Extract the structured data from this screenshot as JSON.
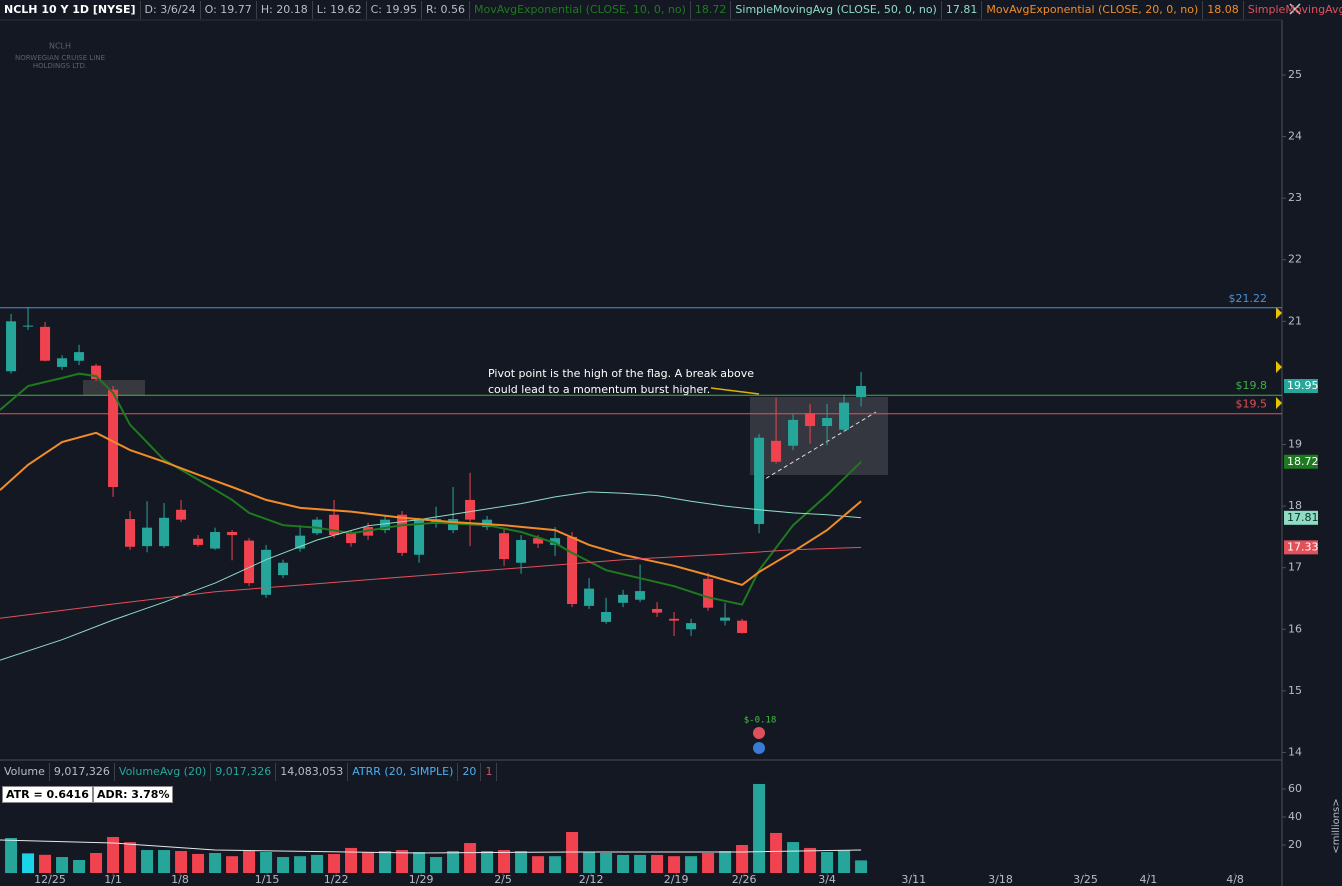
{
  "chart_data": [
    {
      "type": "candlestick",
      "title": "NCLH 10 Y 1D [NYSE]",
      "header": [
        "D: 3/6/24",
        "O: 19.77",
        "H: 20.18",
        "L: 19.62",
        "C: 19.95",
        "R: 0.56"
      ],
      "watermark": [
        "NCLH",
        "NORWEGIAN CRUISE LINE",
        "HOLDINGS LTD."
      ],
      "up_color": "#26a69a",
      "down_color": "#f0434f",
      "open": [
        20.19,
        20.93,
        20.91,
        20.26,
        20.36,
        20.28,
        19.89,
        17.79,
        17.35,
        17.35,
        17.94,
        17.47,
        17.31,
        17.58,
        17.44,
        16.56,
        16.88,
        17.31,
        17.56,
        17.86,
        17.56,
        17.66,
        17.61,
        17.86,
        17.21,
        17.71,
        17.61,
        18.1,
        17.66,
        17.56,
        17.08,
        17.48,
        17.37,
        17.5,
        16.38,
        16.12,
        16.43,
        16.48,
        16.33,
        16.17,
        16.0,
        16.82,
        16.14,
        16.14,
        17.71,
        19.06,
        18.98,
        19.51,
        19.3,
        19.24,
        19.77
      ],
      "high": [
        21.12,
        21.23,
        20.99,
        20.45,
        20.62,
        20.31,
        19.95,
        17.92,
        18.08,
        18.05,
        18.1,
        17.53,
        17.65,
        17.61,
        17.48,
        17.37,
        17.13,
        17.69,
        17.82,
        18.1,
        17.61,
        17.73,
        17.84,
        17.92,
        17.81,
        17.99,
        18.31,
        18.54,
        17.84,
        17.63,
        17.53,
        17.53,
        17.66,
        17.58,
        16.83,
        16.51,
        16.64,
        17.05,
        16.44,
        16.28,
        16.17,
        16.92,
        16.43,
        16.17,
        19.17,
        19.76,
        19.5,
        19.66,
        19.66,
        19.81,
        20.18
      ],
      "low": [
        20.15,
        20.86,
        20.35,
        20.21,
        20.29,
        20.03,
        18.15,
        17.29,
        17.25,
        17.32,
        17.74,
        17.34,
        17.29,
        17.12,
        16.7,
        16.51,
        16.83,
        17.26,
        17.53,
        17.48,
        17.34,
        17.45,
        17.56,
        17.19,
        17.08,
        17.65,
        17.56,
        17.35,
        17.61,
        17.03,
        16.9,
        17.32,
        17.19,
        16.36,
        16.33,
        16.09,
        16.36,
        16.44,
        16.2,
        15.89,
        15.89,
        16.3,
        16.06,
        15.93,
        17.56,
        18.69,
        18.91,
        19.01,
        18.99,
        19.2,
        19.62
      ],
      "close": [
        21.0,
        20.93,
        20.36,
        20.4,
        20.5,
        20.06,
        18.31,
        17.34,
        17.65,
        17.81,
        17.78,
        17.37,
        17.58,
        17.53,
        16.75,
        17.29,
        17.08,
        17.52,
        17.78,
        17.53,
        17.4,
        17.52,
        17.78,
        17.24,
        17.78,
        17.79,
        17.79,
        17.78,
        17.78,
        17.14,
        17.45,
        17.39,
        17.48,
        16.41,
        16.66,
        16.28,
        16.56,
        16.62,
        16.27,
        16.14,
        16.1,
        16.35,
        16.19,
        15.94,
        19.11,
        18.72,
        19.4,
        19.3,
        19.43,
        19.68,
        19.95
      ],
      "xlim": [
        -0.65,
        74.76
      ],
      "xticks": [
        {
          "value": 2.29,
          "label": "12/25"
        },
        {
          "value": 6,
          "label": "1/1"
        },
        {
          "value": 9.94,
          "label": "1/8"
        },
        {
          "value": 15.06,
          "label": "1/15"
        },
        {
          "value": 19.12,
          "label": "1/22"
        },
        {
          "value": 24.12,
          "label": "1/29"
        },
        {
          "value": 28.94,
          "label": "2/5"
        },
        {
          "value": 34.12,
          "label": "2/12"
        },
        {
          "value": 39.12,
          "label": "2/19"
        },
        {
          "value": 43.12,
          "label": "2/26"
        },
        {
          "value": 48,
          "label": "3/4"
        },
        {
          "value": 53.1,
          "label": "3/11"
        },
        {
          "value": 58.2,
          "label": "3/18"
        },
        {
          "value": 63.2,
          "label": "3/25"
        },
        {
          "value": 66.9,
          "label": "4/1"
        },
        {
          "value": 72,
          "label": "4/8"
        }
      ],
      "ylim": [
        13.91,
        25.86
      ],
      "yticks": [
        14,
        15,
        16,
        17,
        18,
        19,
        21,
        22,
        23,
        24,
        25
      ],
      "studies": [
        {
          "name": "MovAvgExponential (CLOSE, 10, 0, no)",
          "color": "#1e7a1e",
          "label_text": "#ffffff",
          "x": [
            -0.65,
            1,
            3,
            4,
            5,
            6,
            7,
            9,
            11,
            13,
            14,
            16,
            18,
            20,
            23,
            25,
            28,
            30,
            32,
            33,
            35,
            37,
            39,
            41,
            43,
            44,
            46,
            48,
            50
          ],
          "values": [
            19.56,
            19.95,
            20.08,
            20.15,
            20.11,
            19.84,
            19.32,
            18.75,
            18.43,
            18.1,
            17.89,
            17.69,
            17.65,
            17.56,
            17.69,
            17.73,
            17.69,
            17.58,
            17.4,
            17.24,
            16.96,
            16.83,
            16.7,
            16.52,
            16.4,
            16.96,
            17.69,
            18.18,
            18.72
          ],
          "last": 18.72,
          "axis_label": true
        },
        {
          "name": "SimpleMovingAvg (CLOSE, 50, 0, no)",
          "color": "#8fdcc4",
          "label_text": "#10302a",
          "x": [
            -0.65,
            3,
            6,
            9,
            12,
            15,
            18,
            21,
            24,
            27,
            30,
            32,
            34,
            36,
            38,
            40,
            42,
            44,
            46,
            48,
            50
          ],
          "values": [
            15.5,
            15.83,
            16.15,
            16.44,
            16.75,
            17.13,
            17.45,
            17.68,
            17.78,
            17.91,
            18.04,
            18.15,
            18.23,
            18.21,
            18.17,
            18.08,
            18.0,
            17.94,
            17.89,
            17.86,
            17.81
          ],
          "last": 17.81,
          "axis_label": true
        },
        {
          "name": "MovAvgExponential (CLOSE, 20, 0, no)",
          "color": "#f28c28",
          "label_text": "#ffffff",
          "x": [
            -0.65,
            1,
            3,
            5,
            7,
            9,
            11,
            13,
            15,
            17,
            20,
            23,
            26,
            29,
            32,
            34,
            36,
            39,
            41,
            43,
            44,
            46,
            48,
            50
          ],
          "values": [
            18.26,
            18.67,
            19.04,
            19.19,
            18.91,
            18.72,
            18.51,
            18.31,
            18.1,
            17.97,
            17.91,
            17.81,
            17.74,
            17.69,
            17.61,
            17.37,
            17.21,
            17.03,
            16.88,
            16.72,
            16.93,
            17.26,
            17.61,
            18.08
          ],
          "last": 18.08,
          "axis_label": false
        },
        {
          "name": "SimpleMovingAvg ...",
          "color": "#e2505a",
          "label_text": "#ffffff",
          "x": [
            -0.65,
            6,
            12,
            18,
            24,
            30,
            36,
            42,
            46,
            50
          ],
          "values": [
            16.18,
            16.41,
            16.61,
            16.74,
            16.87,
            17.0,
            17.13,
            17.22,
            17.29,
            17.33
          ],
          "axis_label": true
        }
      ],
      "price_lines": [
        {
          "value": 21.22,
          "label": "$21.22",
          "color": "#4a90d9"
        },
        {
          "value": 19.8,
          "label": "$19.8",
          "color": "#3cb043"
        },
        {
          "value": 19.5,
          "label": "$19.5",
          "color": "#e0505a"
        }
      ],
      "last_price": 19.95,
      "annotation": [
        "Pivot point is the high of the flag. A break above",
        "could lead to a momentum burst higher."
      ],
      "event": "$-0.18"
    },
    {
      "type": "bar",
      "header": [
        "Volume",
        "9,017,326",
        "VolumeAvg (20)",
        "9,017,326",
        "14,083,053",
        "ATRR (20, SIMPLE)",
        "20",
        "1"
      ],
      "badge": [
        "ATR = 0.6416",
        "ADR: 3.78%"
      ],
      "values": [
        25,
        14,
        13,
        11.4,
        9.3,
        14.3,
        25.7,
        22,
        16.4,
        16.4,
        15.7,
        13.6,
        14.3,
        12,
        15.7,
        15,
        11.4,
        12,
        12.9,
        13.6,
        17.9,
        15,
        15.7,
        16.4,
        15,
        11.4,
        15.7,
        21.4,
        15.7,
        16.4,
        15.7,
        12,
        12,
        29.3,
        15,
        14.3,
        12.9,
        12.9,
        12.9,
        12,
        12,
        14.3,
        15.7,
        20,
        63.6,
        28.6,
        22.1,
        17.9,
        15,
        16.4,
        9.02
      ],
      "flat_color": "#19d3e8",
      "average": {
        "color": "#e8e8e8",
        "x": [
          -0.65,
          6,
          12,
          24,
          33,
          43,
          50
        ],
        "values": [
          23.6,
          21.4,
          16.4,
          14.3,
          15,
          15,
          16.4
        ]
      },
      "ylim": [
        0,
        65
      ],
      "yticks": [
        20,
        40,
        60
      ],
      "ylabel": "<millions>"
    }
  ]
}
